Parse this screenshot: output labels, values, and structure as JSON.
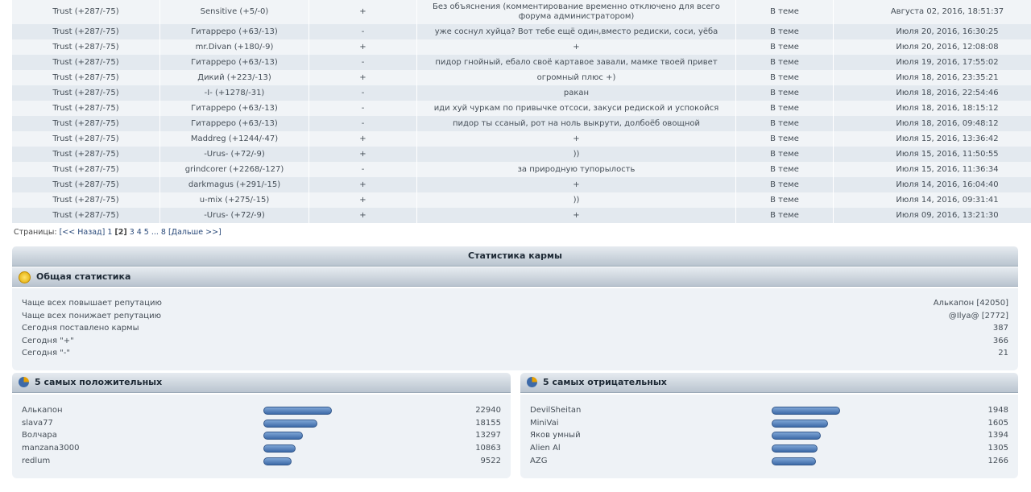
{
  "comments_table": {
    "rows": [
      [
        "Trust (+287/-75)",
        "Sensitive (+5/-0)",
        "+",
        "Без объяснения (комментирование временно отключено для всего форума администратором)",
        "В теме",
        "Августа 02, 2016, 18:51:37"
      ],
      [
        "Trust (+287/-75)",
        "Гитарреро (+63/-13)",
        "-",
        "уже соснул хуйца? Вот тебе ещё один,вместо редиски, соси, уёба",
        "В теме",
        "Июля 20, 2016, 16:30:25"
      ],
      [
        "Trust (+287/-75)",
        "mr.Divan (+180/-9)",
        "+",
        "+",
        "В теме",
        "Июля 20, 2016, 12:08:08"
      ],
      [
        "Trust (+287/-75)",
        "Гитарреро (+63/-13)",
        "-",
        "пидор гнойный, ебало своё картавое завали, мамке твоей привет",
        "В теме",
        "Июля 19, 2016, 17:55:02"
      ],
      [
        "Trust (+287/-75)",
        "Дикий (+223/-13)",
        "+",
        "огромный плюс +)",
        "В теме",
        "Июля 18, 2016, 23:35:21"
      ],
      [
        "Trust (+287/-75)",
        "-I- (+1278/-31)",
        "-",
        "ракан",
        "В теме",
        "Июля 18, 2016, 22:54:46"
      ],
      [
        "Trust (+287/-75)",
        "Гитарреро (+63/-13)",
        "-",
        "иди хуй чуркам по привычке отсоси, закуси редиской и успокойся",
        "В теме",
        "Июля 18, 2016, 18:15:12"
      ],
      [
        "Trust (+287/-75)",
        "Гитарреро (+63/-13)",
        "-",
        "пидор ты ссаный, рот на ноль выкрути, долбоёб овощной",
        "В теме",
        "Июля 18, 2016, 09:48:12"
      ],
      [
        "Trust (+287/-75)",
        "Maddreg (+1244/-47)",
        "+",
        "+",
        "В теме",
        "Июля 15, 2016, 13:36:42"
      ],
      [
        "Trust (+287/-75)",
        "-Urus- (+72/-9)",
        "+",
        "))",
        "В теме",
        "Июля 15, 2016, 11:50:55"
      ],
      [
        "Trust (+287/-75)",
        "grindcorer (+2268/-127)",
        "-",
        "за природную тупорылость",
        "В теме",
        "Июля 15, 2016, 11:36:34"
      ],
      [
        "Trust (+287/-75)",
        "darkmagus (+291/-15)",
        "+",
        "+",
        "В теме",
        "Июля 14, 2016, 16:04:40"
      ],
      [
        "Trust (+287/-75)",
        "u-mix (+275/-15)",
        "+",
        "))",
        "В теме",
        "Июля 14, 2016, 09:31:41"
      ],
      [
        "Trust (+287/-75)",
        "-Urus- (+72/-9)",
        "+",
        "+",
        "В теме",
        "Июля 09, 2016, 13:21:30"
      ]
    ]
  },
  "pagination": {
    "label": "Страницы:",
    "items": [
      "[<< Назад]",
      "1",
      "[2]",
      "3",
      "4",
      "5",
      "...",
      "8",
      "[Дальше >>]"
    ]
  },
  "karma_stats": {
    "title": "Статистика кармы",
    "general": {
      "title": "Общая статистика",
      "rows": [
        {
          "label": "Чаще всех повышает репутацию",
          "value": "Алькапон [42050]"
        },
        {
          "label": "Чаще всех понижает репутацию",
          "value": "@Ilya@ [2772]"
        },
        {
          "label": "Сегодня поставлено кармы",
          "value": 387
        },
        {
          "label": "Сегодня \"+\"",
          "value": 366
        },
        {
          "label": "Сегодня \"-\"",
          "value": 21
        }
      ]
    },
    "top_positive": {
      "title": "5 самых положительных",
      "entries": [
        {
          "name": "Алькапон",
          "value": 22940
        },
        {
          "name": "slava77",
          "value": 18155
        },
        {
          "name": "Волчара",
          "value": 13297
        },
        {
          "name": "manzana3000",
          "value": 10863
        },
        {
          "name": "redlum",
          "value": 9522
        }
      ]
    },
    "top_negative": {
      "title": "5 самых отрицательных",
      "entries": [
        {
          "name": "DevilSheitan",
          "value": 1948
        },
        {
          "name": "MiniVai",
          "value": 1605
        },
        {
          "name": "Яков умный",
          "value": 1394
        },
        {
          "name": "Alien Al",
          "value": 1305
        },
        {
          "name": "AZG",
          "value": 1266
        }
      ]
    }
  }
}
